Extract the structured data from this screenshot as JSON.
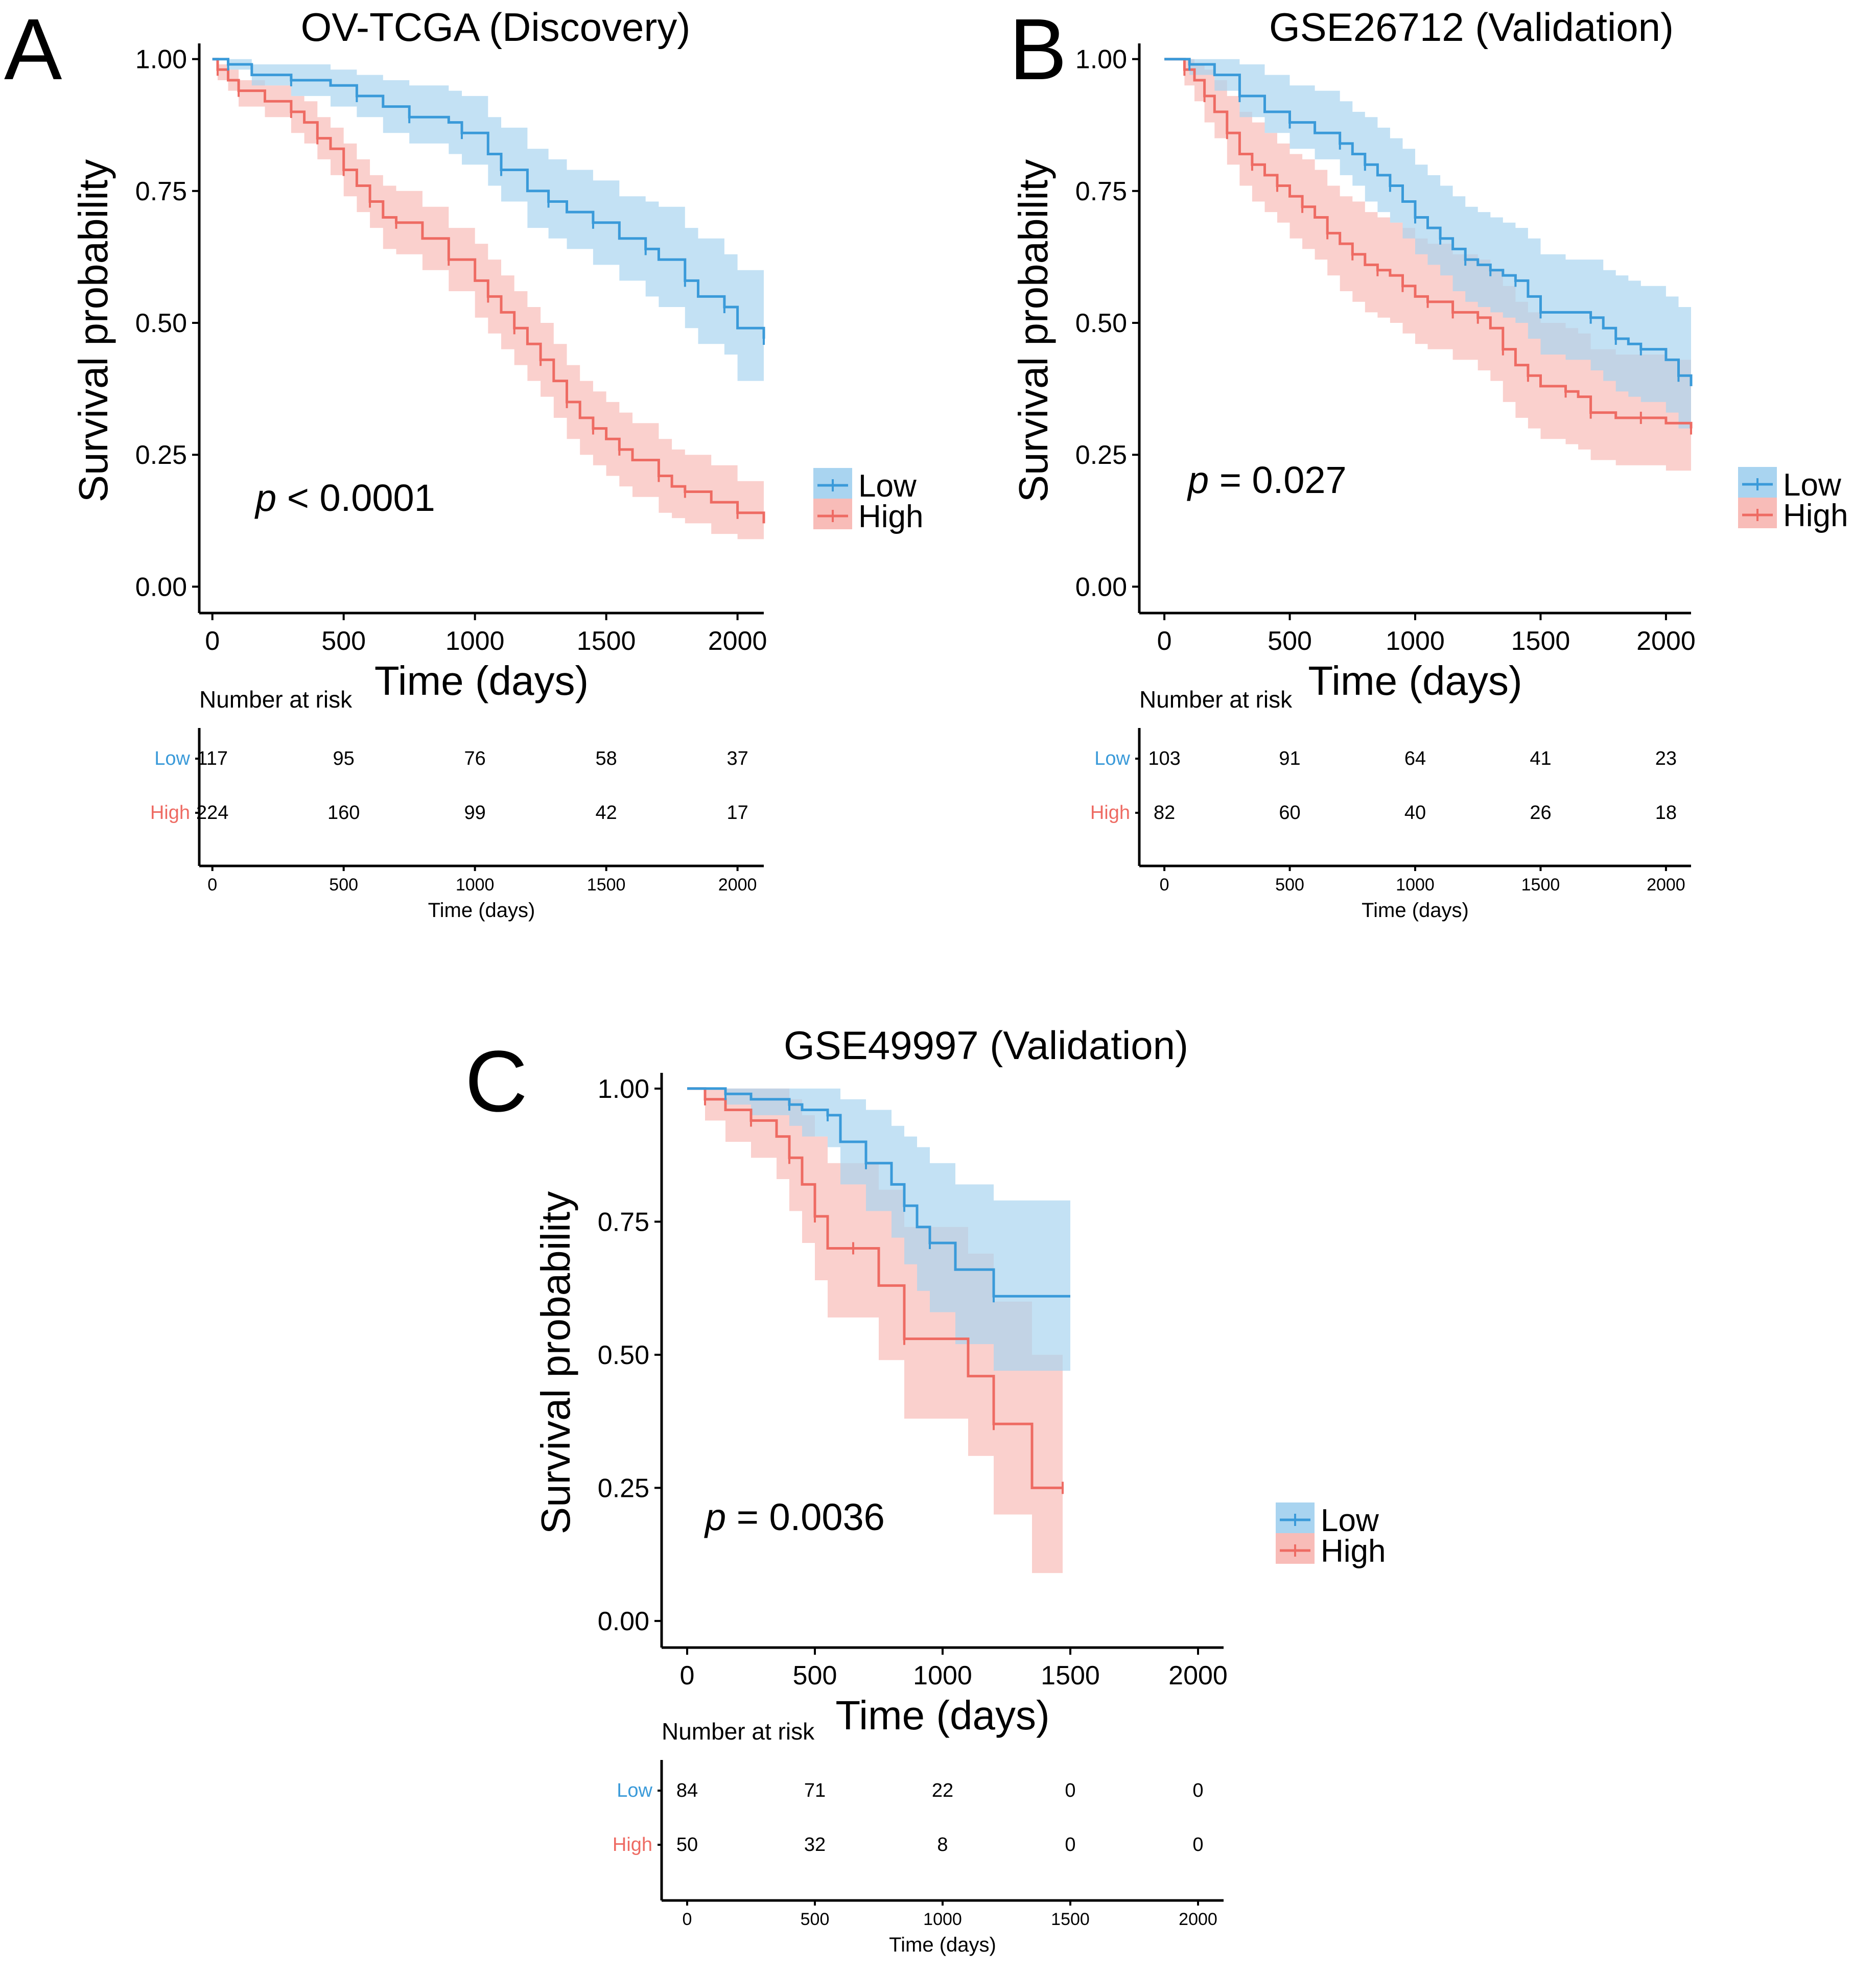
{
  "figure": {
    "panels": [
      {
        "label": "A",
        "title": "OV-TCGA (Discovery)",
        "pvalue_symbol": "p",
        "pvalue_text": " < 0.0001"
      },
      {
        "label": "B",
        "title": "GSE26712 (Validation)",
        "pvalue_symbol": "p",
        "pvalue_text": " = 0.027"
      },
      {
        "label": "C",
        "title": "GSE49997 (Validation)",
        "pvalue_symbol": "p",
        "pvalue_text": " = 0.0036"
      }
    ],
    "legend": {
      "low": "Low",
      "high": "High"
    },
    "risk_table": {
      "heading": "Number at risk",
      "row_labels": [
        "Low",
        "High"
      ],
      "x_label": "Time (days)"
    },
    "colors": {
      "low": "#3a9ad9",
      "high": "#ee6b63",
      "low_band": "#a9d4f0",
      "high_band": "#f8bcb8"
    }
  },
  "chart_data": [
    {
      "type": "line",
      "subtype": "kaplan-meier",
      "title": "OV-TCGA (Discovery)",
      "xlabel": "Time (days)",
      "ylabel": "Survival probability",
      "xlim": [
        -50,
        2100
      ],
      "ylim": [
        -0.05,
        1.02
      ],
      "xticks": [
        0,
        500,
        1000,
        1500,
        2000
      ],
      "yticks": [
        "0.00",
        "0.25",
        "0.50",
        "0.75",
        "1.00"
      ],
      "pvalue": "p < 0.0001",
      "series": [
        {
          "name": "Low",
          "x": [
            0,
            60,
            150,
            300,
            450,
            550,
            650,
            750,
            900,
            950,
            1050,
            1100,
            1200,
            1280,
            1350,
            1450,
            1550,
            1650,
            1700,
            1800,
            1850,
            1950,
            2000,
            2100
          ],
          "y": [
            1.0,
            0.99,
            0.97,
            0.96,
            0.95,
            0.93,
            0.91,
            0.89,
            0.88,
            0.86,
            0.82,
            0.79,
            0.75,
            0.73,
            0.71,
            0.69,
            0.66,
            0.64,
            0.62,
            0.58,
            0.55,
            0.53,
            0.49,
            0.47
          ],
          "lower": [
            1.0,
            0.98,
            0.95,
            0.93,
            0.91,
            0.89,
            0.86,
            0.84,
            0.82,
            0.8,
            0.76,
            0.73,
            0.68,
            0.66,
            0.64,
            0.61,
            0.58,
            0.55,
            0.53,
            0.49,
            0.46,
            0.44,
            0.39,
            0.37
          ],
          "upper": [
            1.0,
            1.0,
            0.99,
            0.99,
            0.98,
            0.97,
            0.96,
            0.95,
            0.94,
            0.93,
            0.89,
            0.87,
            0.83,
            0.81,
            0.79,
            0.77,
            0.74,
            0.73,
            0.72,
            0.68,
            0.66,
            0.63,
            0.6,
            0.58
          ]
        },
        {
          "name": "High",
          "x": [
            0,
            20,
            60,
            100,
            200,
            300,
            350,
            400,
            450,
            500,
            550,
            600,
            650,
            700,
            800,
            900,
            1000,
            1050,
            1100,
            1150,
            1200,
            1250,
            1300,
            1350,
            1400,
            1450,
            1500,
            1550,
            1600,
            1700,
            1750,
            1800,
            1900,
            2000,
            2100
          ],
          "y": [
            1.0,
            0.98,
            0.96,
            0.94,
            0.92,
            0.9,
            0.88,
            0.85,
            0.83,
            0.79,
            0.76,
            0.73,
            0.7,
            0.69,
            0.66,
            0.62,
            0.58,
            0.55,
            0.52,
            0.49,
            0.46,
            0.43,
            0.39,
            0.35,
            0.32,
            0.3,
            0.28,
            0.26,
            0.24,
            0.21,
            0.19,
            0.18,
            0.16,
            0.14,
            0.12
          ],
          "lower": [
            1.0,
            0.96,
            0.94,
            0.91,
            0.89,
            0.86,
            0.84,
            0.81,
            0.78,
            0.74,
            0.71,
            0.68,
            0.64,
            0.63,
            0.6,
            0.56,
            0.51,
            0.48,
            0.45,
            0.42,
            0.39,
            0.36,
            0.32,
            0.28,
            0.25,
            0.23,
            0.21,
            0.19,
            0.17,
            0.14,
            0.13,
            0.12,
            0.1,
            0.09,
            0.08
          ],
          "upper": [
            1.0,
            0.99,
            0.98,
            0.96,
            0.95,
            0.93,
            0.92,
            0.89,
            0.87,
            0.84,
            0.81,
            0.78,
            0.76,
            0.75,
            0.72,
            0.68,
            0.65,
            0.62,
            0.59,
            0.56,
            0.53,
            0.5,
            0.46,
            0.42,
            0.39,
            0.37,
            0.35,
            0.33,
            0.31,
            0.28,
            0.26,
            0.25,
            0.23,
            0.2,
            0.18
          ]
        }
      ],
      "risk_table": {
        "times": [
          0,
          500,
          1000,
          1500,
          2000
        ],
        "Low": [
          117,
          95,
          76,
          58,
          37
        ],
        "High": [
          224,
          160,
          99,
          42,
          17
        ]
      }
    },
    {
      "type": "line",
      "subtype": "kaplan-meier",
      "title": "GSE26712 (Validation)",
      "xlabel": "Time (days)",
      "ylabel": "Survival probability",
      "xlim": [
        -100,
        2100
      ],
      "ylim": [
        -0.05,
        1.02
      ],
      "xticks": [
        0,
        500,
        1000,
        1500,
        2000
      ],
      "yticks": [
        "0.00",
        "0.25",
        "0.50",
        "0.75",
        "1.00"
      ],
      "pvalue": "p = 0.027",
      "series": [
        {
          "name": "Low",
          "x": [
            0,
            100,
            200,
            300,
            400,
            500,
            600,
            700,
            750,
            800,
            850,
            900,
            950,
            1000,
            1050,
            1100,
            1150,
            1200,
            1250,
            1300,
            1350,
            1400,
            1450,
            1500,
            1600,
            1700,
            1750,
            1800,
            1850,
            1900,
            2000,
            2050,
            2100
          ],
          "y": [
            1.0,
            0.99,
            0.97,
            0.93,
            0.9,
            0.88,
            0.86,
            0.84,
            0.82,
            0.8,
            0.78,
            0.76,
            0.73,
            0.7,
            0.68,
            0.66,
            0.64,
            0.62,
            0.61,
            0.6,
            0.59,
            0.58,
            0.55,
            0.52,
            0.52,
            0.51,
            0.49,
            0.47,
            0.46,
            0.45,
            0.43,
            0.4,
            0.38
          ],
          "lower": [
            1.0,
            0.97,
            0.94,
            0.89,
            0.86,
            0.83,
            0.81,
            0.78,
            0.76,
            0.73,
            0.71,
            0.69,
            0.66,
            0.63,
            0.61,
            0.59,
            0.56,
            0.54,
            0.53,
            0.52,
            0.51,
            0.5,
            0.47,
            0.44,
            0.43,
            0.41,
            0.39,
            0.37,
            0.36,
            0.35,
            0.33,
            0.3,
            0.28
          ],
          "upper": [
            1.0,
            1.0,
            1.0,
            0.99,
            0.97,
            0.95,
            0.94,
            0.92,
            0.9,
            0.89,
            0.87,
            0.85,
            0.83,
            0.8,
            0.78,
            0.76,
            0.74,
            0.72,
            0.71,
            0.7,
            0.69,
            0.68,
            0.66,
            0.63,
            0.62,
            0.62,
            0.6,
            0.59,
            0.58,
            0.57,
            0.55,
            0.53,
            0.5
          ]
        },
        {
          "name": "High",
          "x": [
            0,
            80,
            120,
            160,
            200,
            250,
            300,
            350,
            400,
            450,
            500,
            550,
            600,
            650,
            700,
            750,
            800,
            850,
            900,
            950,
            1000,
            1050,
            1100,
            1150,
            1200,
            1250,
            1300,
            1350,
            1400,
            1450,
            1500,
            1600,
            1650,
            1700,
            1800,
            1900,
            2000,
            2100
          ],
          "y": [
            1.0,
            0.98,
            0.96,
            0.93,
            0.9,
            0.86,
            0.82,
            0.8,
            0.78,
            0.76,
            0.74,
            0.72,
            0.7,
            0.67,
            0.65,
            0.63,
            0.61,
            0.6,
            0.59,
            0.57,
            0.55,
            0.54,
            0.54,
            0.52,
            0.52,
            0.51,
            0.49,
            0.45,
            0.42,
            0.4,
            0.38,
            0.37,
            0.36,
            0.33,
            0.32,
            0.32,
            0.31,
            0.3
          ],
          "lower": [
            1.0,
            0.95,
            0.92,
            0.88,
            0.85,
            0.8,
            0.76,
            0.73,
            0.71,
            0.69,
            0.66,
            0.64,
            0.62,
            0.59,
            0.56,
            0.54,
            0.52,
            0.51,
            0.5,
            0.48,
            0.46,
            0.45,
            0.45,
            0.43,
            0.43,
            0.41,
            0.39,
            0.35,
            0.32,
            0.3,
            0.28,
            0.27,
            0.26,
            0.24,
            0.23,
            0.23,
            0.22,
            0.21
          ],
          "upper": [
            1.0,
            1.0,
            0.99,
            0.98,
            0.96,
            0.93,
            0.9,
            0.88,
            0.86,
            0.84,
            0.82,
            0.81,
            0.79,
            0.76,
            0.74,
            0.73,
            0.71,
            0.7,
            0.69,
            0.68,
            0.66,
            0.65,
            0.65,
            0.63,
            0.63,
            0.62,
            0.6,
            0.57,
            0.54,
            0.52,
            0.5,
            0.49,
            0.48,
            0.45,
            0.44,
            0.44,
            0.43,
            0.42
          ]
        }
      ],
      "risk_table": {
        "times": [
          0,
          500,
          1000,
          1500,
          2000
        ],
        "Low": [
          103,
          91,
          64,
          41,
          23
        ],
        "High": [
          82,
          60,
          40,
          26,
          18
        ]
      }
    },
    {
      "type": "line",
      "subtype": "kaplan-meier",
      "title": "GSE49997 (Validation)",
      "xlabel": "Time (days)",
      "ylabel": "Survival probability",
      "xlim": [
        -100,
        2100
      ],
      "ylim": [
        -0.05,
        1.02
      ],
      "xticks": [
        0,
        500,
        1000,
        1500,
        2000
      ],
      "yticks": [
        "0.00",
        "0.25",
        "0.50",
        "0.75",
        "1.00"
      ],
      "pvalue": "p = 0.0036",
      "series": [
        {
          "name": "Low",
          "x": [
            0,
            150,
            250,
            400,
            450,
            550,
            600,
            700,
            800,
            850,
            900,
            950,
            1050,
            1200,
            1500
          ],
          "y": [
            1.0,
            0.99,
            0.98,
            0.97,
            0.96,
            0.95,
            0.9,
            0.86,
            0.82,
            0.78,
            0.74,
            0.71,
            0.66,
            0.61,
            0.61
          ],
          "lower": [
            1.0,
            0.97,
            0.95,
            0.93,
            0.91,
            0.89,
            0.82,
            0.77,
            0.72,
            0.67,
            0.62,
            0.58,
            0.52,
            0.47,
            0.47
          ],
          "upper": [
            1.0,
            1.0,
            1.0,
            1.0,
            1.0,
            1.0,
            0.98,
            0.96,
            0.93,
            0.91,
            0.89,
            0.86,
            0.82,
            0.79,
            0.79
          ]
        },
        {
          "name": "High",
          "x": [
            0,
            70,
            150,
            250,
            350,
            400,
            450,
            500,
            550,
            650,
            750,
            850,
            1100,
            1200,
            1350,
            1470
          ],
          "y": [
            1.0,
            0.98,
            0.96,
            0.94,
            0.91,
            0.87,
            0.82,
            0.76,
            0.7,
            0.7,
            0.63,
            0.53,
            0.46,
            0.37,
            0.25,
            0.25
          ],
          "lower": [
            1.0,
            0.94,
            0.9,
            0.87,
            0.83,
            0.77,
            0.71,
            0.64,
            0.57,
            0.57,
            0.49,
            0.38,
            0.31,
            0.2,
            0.09,
            0.09
          ],
          "upper": [
            1.0,
            1.0,
            1.0,
            1.0,
            1.0,
            0.98,
            0.95,
            0.91,
            0.86,
            0.86,
            0.81,
            0.74,
            0.69,
            0.6,
            0.5,
            0.5
          ]
        }
      ],
      "risk_table": {
        "times": [
          0,
          500,
          1000,
          1500,
          2000
        ],
        "Low": [
          84,
          71,
          22,
          0,
          0
        ],
        "High": [
          50,
          32,
          8,
          0,
          0
        ]
      }
    }
  ]
}
